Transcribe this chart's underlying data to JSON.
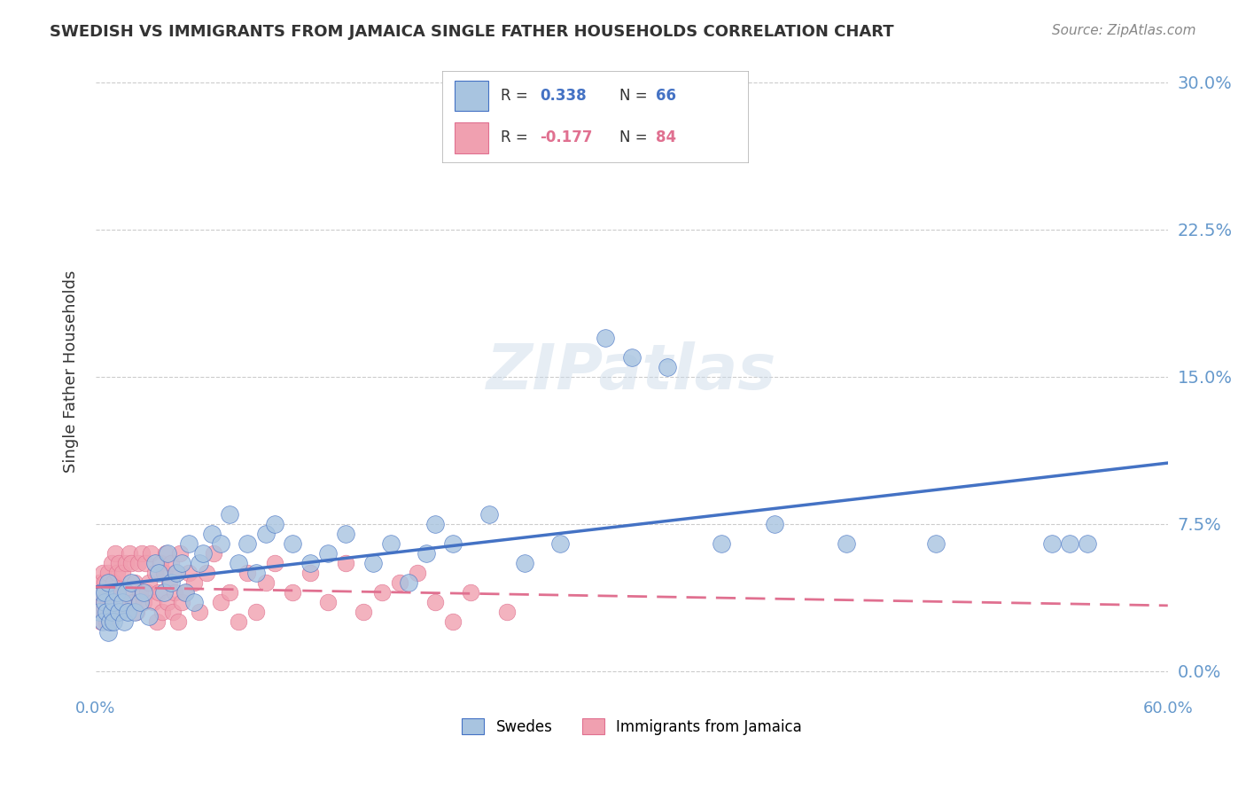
{
  "title": "SWEDISH VS IMMIGRANTS FROM JAMAICA SINGLE FATHER HOUSEHOLDS CORRELATION CHART",
  "source": "Source: ZipAtlas.com",
  "ylabel": "Single Father Households",
  "ytick_labels": [
    "0.0%",
    "7.5%",
    "15.0%",
    "22.5%",
    "30.0%"
  ],
  "ytick_values": [
    0.0,
    0.075,
    0.15,
    0.225,
    0.3
  ],
  "xtick_labels": [
    "0.0%",
    "",
    "",
    "",
    "",
    "",
    "60.0%"
  ],
  "xtick_values": [
    0.0,
    0.1,
    0.2,
    0.3,
    0.4,
    0.5,
    0.6
  ],
  "xlim": [
    0.0,
    0.6
  ],
  "ylim": [
    -0.01,
    0.315
  ],
  "swedes_R": 0.338,
  "swedes_N": 66,
  "jamaica_R": -0.177,
  "jamaica_N": 84,
  "swedes_color": "#a8c4e0",
  "jamaica_color": "#f0a0b0",
  "swedes_line_color": "#4472c4",
  "jamaica_line_color": "#e07090",
  "watermark": "ZIPatlas",
  "background_color": "#ffffff",
  "axis_color": "#6699cc",
  "grid_color": "#cccccc",
  "title_color": "#333333",
  "swedes_x": [
    0.002,
    0.003,
    0.004,
    0.005,
    0.005,
    0.006,
    0.007,
    0.007,
    0.008,
    0.009,
    0.01,
    0.01,
    0.012,
    0.013,
    0.015,
    0.016,
    0.017,
    0.018,
    0.02,
    0.022,
    0.025,
    0.027,
    0.03,
    0.033,
    0.035,
    0.038,
    0.04,
    0.042,
    0.045,
    0.048,
    0.05,
    0.052,
    0.055,
    0.058,
    0.06,
    0.065,
    0.07,
    0.075,
    0.08,
    0.085,
    0.09,
    0.095,
    0.1,
    0.11,
    0.12,
    0.13,
    0.14,
    0.155,
    0.165,
    0.175,
    0.185,
    0.19,
    0.2,
    0.22,
    0.24,
    0.26,
    0.285,
    0.3,
    0.32,
    0.35,
    0.38,
    0.42,
    0.47,
    0.535,
    0.545,
    0.555
  ],
  "swedes_y": [
    0.03,
    0.04,
    0.025,
    0.035,
    0.04,
    0.03,
    0.02,
    0.045,
    0.025,
    0.03,
    0.035,
    0.025,
    0.04,
    0.03,
    0.035,
    0.025,
    0.04,
    0.03,
    0.045,
    0.03,
    0.035,
    0.04,
    0.028,
    0.055,
    0.05,
    0.04,
    0.06,
    0.045,
    0.05,
    0.055,
    0.04,
    0.065,
    0.035,
    0.055,
    0.06,
    0.07,
    0.065,
    0.08,
    0.055,
    0.065,
    0.05,
    0.07,
    0.075,
    0.065,
    0.055,
    0.06,
    0.07,
    0.055,
    0.065,
    0.045,
    0.06,
    0.075,
    0.065,
    0.08,
    0.055,
    0.065,
    0.17,
    0.16,
    0.155,
    0.065,
    0.075,
    0.065,
    0.065,
    0.065,
    0.065,
    0.065
  ],
  "jamaica_x": [
    0.001,
    0.002,
    0.002,
    0.003,
    0.003,
    0.004,
    0.004,
    0.005,
    0.005,
    0.006,
    0.006,
    0.007,
    0.007,
    0.008,
    0.008,
    0.009,
    0.009,
    0.01,
    0.01,
    0.011,
    0.011,
    0.012,
    0.012,
    0.013,
    0.014,
    0.015,
    0.016,
    0.017,
    0.018,
    0.019,
    0.02,
    0.021,
    0.022,
    0.023,
    0.024,
    0.025,
    0.026,
    0.027,
    0.028,
    0.029,
    0.03,
    0.031,
    0.032,
    0.033,
    0.034,
    0.035,
    0.036,
    0.037,
    0.038,
    0.039,
    0.04,
    0.041,
    0.042,
    0.043,
    0.044,
    0.045,
    0.046,
    0.047,
    0.048,
    0.05,
    0.052,
    0.055,
    0.058,
    0.062,
    0.066,
    0.07,
    0.075,
    0.08,
    0.085,
    0.09,
    0.095,
    0.1,
    0.11,
    0.12,
    0.13,
    0.14,
    0.15,
    0.16,
    0.17,
    0.18,
    0.19,
    0.2,
    0.21,
    0.23
  ],
  "jamaica_y": [
    0.035,
    0.03,
    0.045,
    0.025,
    0.04,
    0.035,
    0.05,
    0.03,
    0.045,
    0.025,
    0.04,
    0.035,
    0.05,
    0.025,
    0.04,
    0.055,
    0.035,
    0.03,
    0.045,
    0.06,
    0.035,
    0.05,
    0.04,
    0.055,
    0.03,
    0.05,
    0.035,
    0.055,
    0.04,
    0.06,
    0.055,
    0.035,
    0.045,
    0.03,
    0.055,
    0.04,
    0.06,
    0.035,
    0.055,
    0.04,
    0.045,
    0.06,
    0.035,
    0.05,
    0.025,
    0.04,
    0.055,
    0.03,
    0.05,
    0.06,
    0.035,
    0.045,
    0.055,
    0.03,
    0.04,
    0.05,
    0.025,
    0.06,
    0.035,
    0.04,
    0.05,
    0.045,
    0.03,
    0.05,
    0.06,
    0.035,
    0.04,
    0.025,
    0.05,
    0.03,
    0.045,
    0.055,
    0.04,
    0.05,
    0.035,
    0.055,
    0.03,
    0.04,
    0.045,
    0.05,
    0.035,
    0.025,
    0.04,
    0.03
  ]
}
